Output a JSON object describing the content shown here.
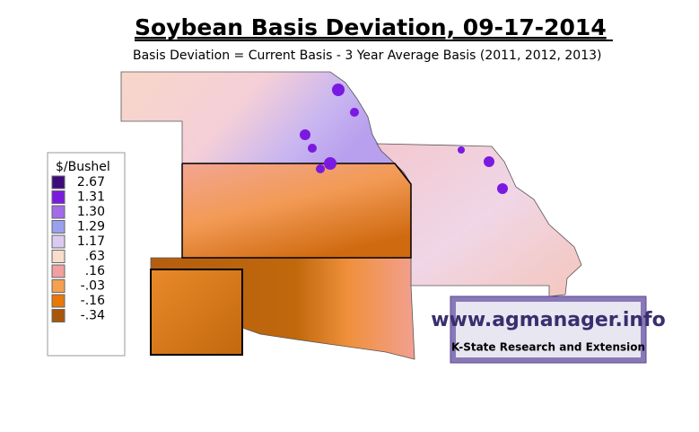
{
  "title": "Soybean Basis Deviation, 09-17-2014",
  "subtitle": "Basis Deviation = Current Basis - 3 Year Average Basis (2011, 2012, 2013)",
  "legend": {
    "title": "$/Bushel",
    "items": [
      {
        "label": "2.67",
        "color": "#3d0a7a"
      },
      {
        "label": "1.31",
        "color": "#7a1ae0"
      },
      {
        "label": "1.30",
        "color": "#a36be8"
      },
      {
        "label": "1.29",
        "color": "#9aa0f0"
      },
      {
        "label": "1.17",
        "color": "#dccbf0"
      },
      {
        "label": ".63",
        "color": "#f8dccc"
      },
      {
        "label": ".16",
        "color": "#f0a0a0"
      },
      {
        "label": "-.03",
        "color": "#f5a050"
      },
      {
        "label": "-.16",
        "color": "#e8780a"
      },
      {
        "label": "-.34",
        "color": "#a8560a"
      }
    ]
  },
  "logo": {
    "url": "www.agmanager.info",
    "caption": "K-State Research and Extension"
  }
}
